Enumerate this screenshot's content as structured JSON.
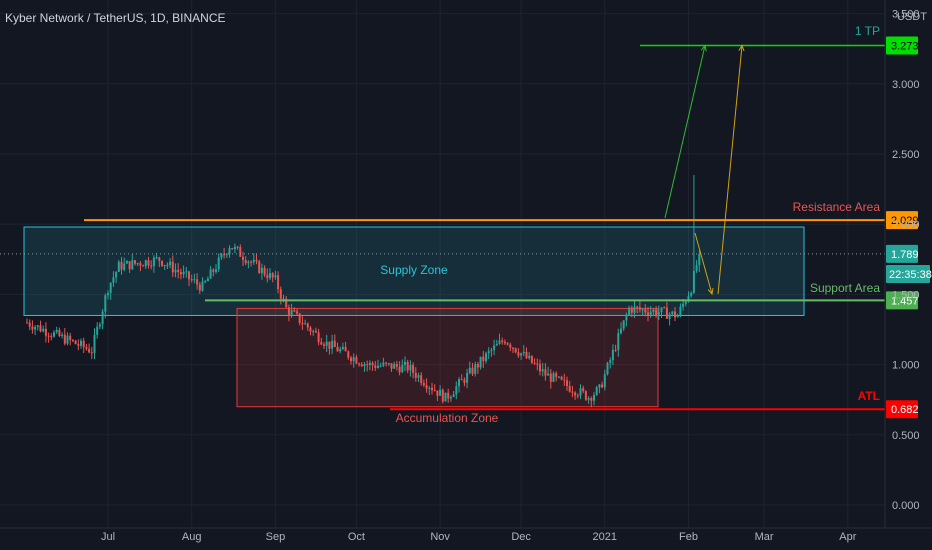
{
  "chart_data": {
    "type": "candlestick",
    "title": "Kyber Network / TetherUS, 1D, BINANCE",
    "currency": "USDT",
    "x_ticks": [
      "Jul",
      "Aug",
      "Sep",
      "Oct",
      "Nov",
      "Dec",
      "2021",
      "Feb",
      "Mar",
      "Apr"
    ],
    "y_ticks": [
      "0.000",
      "0.500",
      "1.000",
      "1.500",
      "2.000",
      "2.500",
      "3.000",
      "3.500"
    ],
    "ylim": [
      0,
      3.5
    ],
    "grid": true,
    "colors": {
      "up": "#26a69a",
      "down": "#ef5350",
      "resistance": "#ff9800",
      "support": "#66bb6a",
      "target": "#00e000",
      "atl": "#ff0000",
      "supply_zone": "#26c6da",
      "accumulation_zone": "#e53935"
    },
    "price_badges": {
      "target": "3.273",
      "resistance": "2.029",
      "current": "1.789",
      "countdown": "22:35:38",
      "support": "1.457",
      "atl": "0.682"
    },
    "annotations": {
      "tp": "1 TP",
      "resistance": "Resistance Area",
      "support": "Support Area",
      "atl": "ATL",
      "supply_zone": "Supply Zone",
      "accumulation_zone": "Accumulation Zone"
    },
    "levels": {
      "target": 3.273,
      "resistance": 2.029,
      "support": 1.457,
      "atl": 0.682,
      "current": 1.789
    },
    "zones": {
      "supply": {
        "from": "Jun 2020",
        "to": "Mar 2021",
        "low": 1.35,
        "high": 1.98
      },
      "accumulation": {
        "from": "Sep 2020",
        "to": "Feb 2021",
        "low": 0.7,
        "high": 1.4
      }
    },
    "keypoints": [
      [
        "2020-06-01",
        1.3
      ],
      [
        "2020-06-25",
        1.1
      ],
      [
        "2020-07-01",
        1.55
      ],
      [
        "2020-07-05",
        1.7
      ],
      [
        "2020-07-20",
        1.75
      ],
      [
        "2020-08-05",
        1.55
      ],
      [
        "2020-08-15",
        1.85
      ],
      [
        "2020-08-25",
        1.7
      ],
      [
        "2020-09-01",
        1.6
      ],
      [
        "2020-09-05",
        1.4
      ],
      [
        "2020-09-20",
        1.15
      ],
      [
        "2020-10-05",
        1.0
      ],
      [
        "2020-10-20",
        0.98
      ],
      [
        "2020-11-03",
        0.76
      ],
      [
        "2020-11-20",
        1.1
      ],
      [
        "2020-11-25",
        1.18
      ],
      [
        "2020-12-10",
        0.93
      ],
      [
        "2020-12-26",
        0.77
      ],
      [
        "2020-12-30",
        0.82
      ],
      [
        "2021-01-10",
        1.4
      ],
      [
        "2021-01-20",
        1.38
      ],
      [
        "2021-01-28",
        1.35
      ],
      [
        "2021-02-02",
        1.55
      ],
      [
        "2021-02-05",
        1.79
      ]
    ]
  }
}
